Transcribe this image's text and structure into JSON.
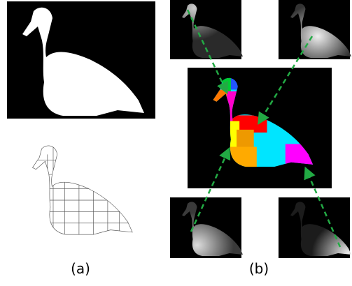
{
  "labels": {
    "a": "(a)",
    "b": "(b)"
  }
}
